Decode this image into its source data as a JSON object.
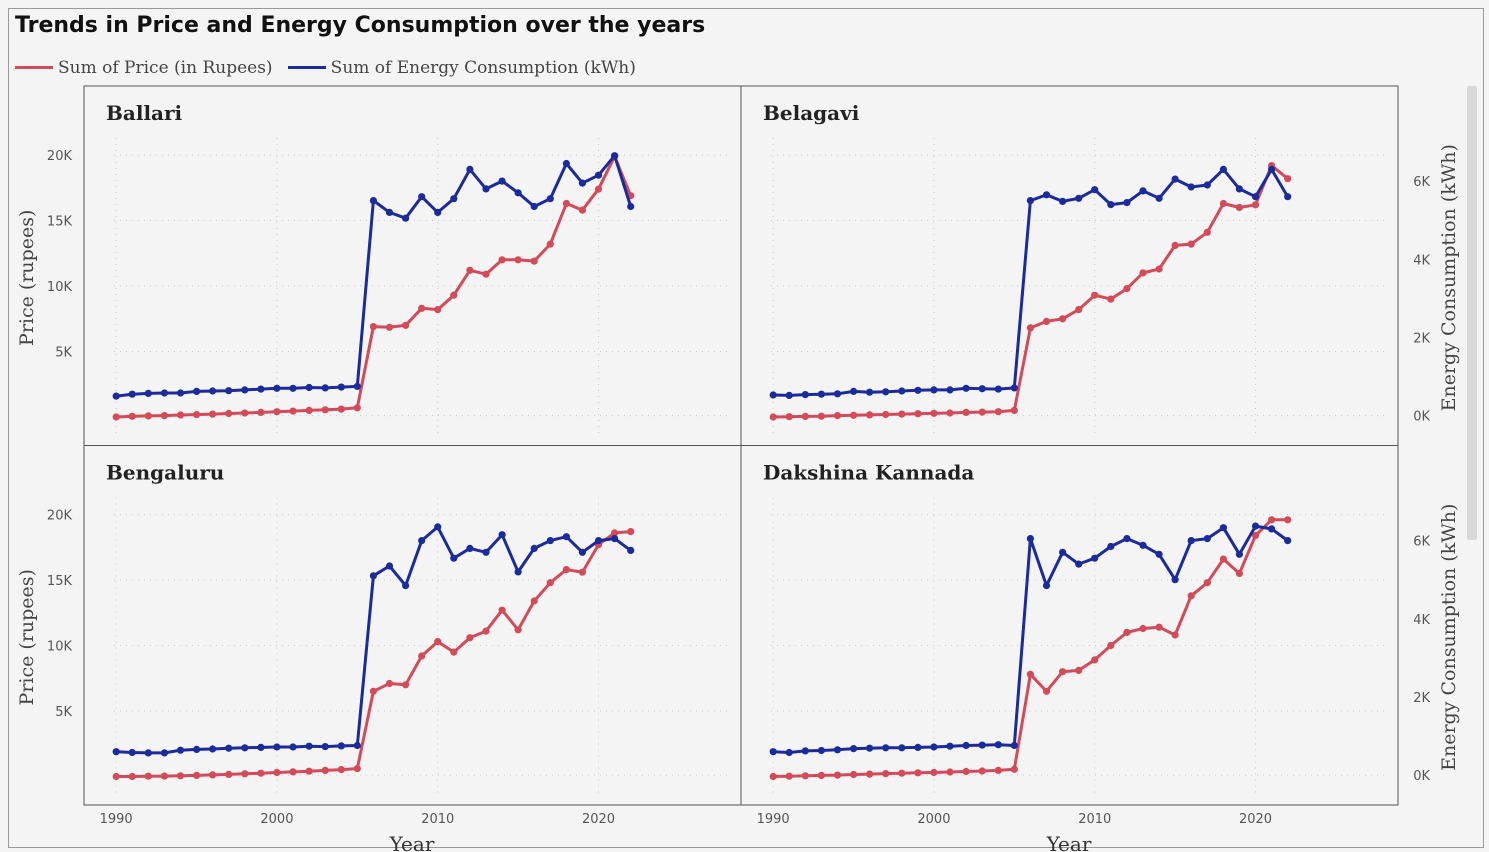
{
  "title": "Trends in Price and Energy Consumption over the years",
  "legend": {
    "price": "Sum of Price (in Rupees)",
    "energy": "Sum of Energy Consumption (kWh)"
  },
  "colors": {
    "price": "#d44a58",
    "energy": "#1b2a9c"
  },
  "chart_data": {
    "type": "line",
    "x_label": "Year",
    "y_label": "Price (rupees)",
    "y2_label": "Energy Consumption (kWh)",
    "x_ticks": [
      "1990",
      "2000",
      "2010",
      "2020"
    ],
    "x_tick_values": [
      1990,
      2000,
      2010,
      2020
    ],
    "y_ticks": [
      "5K",
      "10K",
      "15K",
      "20K"
    ],
    "y_tick_values": [
      5000,
      10000,
      15000,
      20000
    ],
    "y2_ticks": [
      "0K",
      "2K",
      "4K",
      "6K"
    ],
    "y2_tick_values": [
      0,
      2000,
      4000,
      6000
    ],
    "xlim": [
      1988,
      2026
    ],
    "ylim": [
      -500,
      21000
    ],
    "y2lim": [
      -200,
      7000
    ],
    "grid": true,
    "x": [
      1990,
      1991,
      1992,
      1993,
      1994,
      1995,
      1996,
      1997,
      1998,
      1999,
      2000,
      2001,
      2002,
      2003,
      2004,
      2005,
      2006,
      2007,
      2008,
      2009,
      2010,
      2011,
      2012,
      2013,
      2014,
      2015,
      2016,
      2017,
      2018,
      2019,
      2020,
      2021,
      2022
    ],
    "panels": [
      {
        "name": "Ballari",
        "price": [
          0,
          50,
          80,
          100,
          150,
          180,
          220,
          260,
          300,
          350,
          400,
          450,
          500,
          550,
          600,
          700,
          6900,
          6850,
          7000,
          8300,
          8200,
          9300,
          11200,
          10900,
          12000,
          12000,
          11900,
          13200,
          16300,
          15800,
          17400,
          19900,
          16900
        ],
        "energy": [
          500,
          550,
          570,
          580,
          580,
          620,
          630,
          640,
          660,
          680,
          700,
          700,
          720,
          710,
          730,
          750,
          5500,
          5200,
          5050,
          5600,
          5200,
          5550,
          6300,
          5800,
          6000,
          5700,
          5350,
          5550,
          6450,
          5950,
          6150,
          6650,
          5350
        ]
      },
      {
        "name": "Belagavi",
        "price": [
          0,
          20,
          40,
          60,
          100,
          130,
          160,
          190,
          220,
          250,
          280,
          300,
          350,
          370,
          400,
          500,
          6800,
          7300,
          7500,
          8200,
          9300,
          9000,
          9800,
          11000,
          11300,
          13100,
          13200,
          14100,
          16300,
          16000,
          16200,
          19200,
          18200
        ],
        "energy": [
          530,
          520,
          540,
          550,
          560,
          620,
          600,
          610,
          630,
          650,
          660,
          660,
          700,
          690,
          680,
          710,
          5500,
          5650,
          5480,
          5560,
          5780,
          5400,
          5450,
          5750,
          5560,
          6050,
          5850,
          5900,
          6300,
          5800,
          5600,
          6300,
          5600
        ]
      },
      {
        "name": "Bengaluru",
        "price": [
          0,
          0,
          20,
          30,
          50,
          80,
          120,
          160,
          200,
          250,
          300,
          350,
          400,
          460,
          520,
          600,
          6500,
          7100,
          7000,
          9200,
          10300,
          9500,
          10600,
          11100,
          12700,
          11200,
          13400,
          14800,
          15800,
          15600,
          17700,
          18600,
          18700
        ],
        "energy": [
          600,
          580,
          570,
          570,
          640,
          660,
          670,
          690,
          700,
          710,
          720,
          720,
          740,
          730,
          750,
          760,
          5100,
          5350,
          4850,
          6000,
          6350,
          5550,
          5800,
          5700,
          6150,
          5200,
          5800,
          6000,
          6100,
          5700,
          6000,
          6050,
          5750
        ]
      },
      {
        "name": "Dakshina Kannada",
        "price": [
          0,
          20,
          50,
          80,
          100,
          150,
          180,
          220,
          250,
          280,
          300,
          340,
          380,
          420,
          460,
          550,
          7800,
          6500,
          8000,
          8100,
          8900,
          10000,
          11000,
          11300,
          11400,
          10800,
          13800,
          14800,
          16600,
          15500,
          18400,
          19600,
          19600
        ],
        "energy": [
          600,
          580,
          620,
          630,
          650,
          680,
          690,
          700,
          700,
          710,
          720,
          740,
          760,
          770,
          780,
          760,
          6050,
          4850,
          5700,
          5400,
          5550,
          5850,
          6050,
          5880,
          5650,
          5000,
          6000,
          6050,
          6330,
          5650,
          6370,
          6300,
          6000
        ]
      }
    ]
  }
}
